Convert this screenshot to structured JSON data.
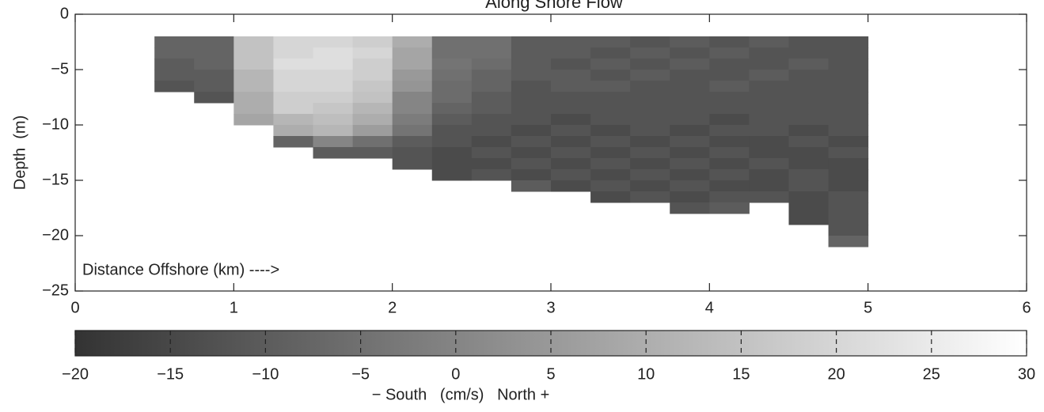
{
  "chart_data": {
    "type": "heatmap",
    "title": "Along Shore Flow",
    "ylabel": "Depth  (m)",
    "annotation": "Distance Offshore (km) ---->",
    "xlim": [
      0,
      6
    ],
    "xticks": [
      0,
      1,
      2,
      3,
      4,
      5,
      6
    ],
    "ylim": [
      -25,
      0
    ],
    "yticks": [
      0,
      {
        "value": -5,
        "label": "−5"
      },
      {
        "value": -10,
        "label": "−10"
      },
      {
        "value": -15,
        "label": "−15"
      },
      {
        "value": -20,
        "label": "−20"
      },
      {
        "value": -25,
        "label": "−25"
      }
    ],
    "x_edges": [
      0.5,
      0.75,
      1.0,
      1.25,
      1.5,
      1.75,
      2.0,
      2.25,
      2.5,
      2.75,
      3.0,
      3.25,
      3.5,
      3.75,
      4.0,
      4.25,
      4.5,
      4.75,
      5.0
    ],
    "y_edges": [
      -2,
      -3,
      -4,
      -5,
      -6,
      -7,
      -8,
      -9,
      -10,
      -11,
      -12,
      -13,
      -14,
      -15,
      -16,
      -17,
      -18,
      -19,
      -20,
      -21
    ],
    "z": [
      [
        -8,
        -8,
        15,
        20,
        20,
        18,
        10,
        -5,
        -5,
        -10,
        -10,
        -10,
        -12,
        -10,
        -12,
        -10,
        -12,
        -12
      ],
      [
        -8,
        -8,
        15,
        20,
        22,
        20,
        8,
        -5,
        -5,
        -10,
        -10,
        -12,
        -10,
        -12,
        -10,
        -12,
        -12,
        -12
      ],
      [
        -10,
        -8,
        15,
        22,
        22,
        18,
        8,
        -4,
        -6,
        -10,
        -12,
        -10,
        -12,
        -10,
        -12,
        -12,
        -10,
        -12
      ],
      [
        -10,
        -10,
        12,
        20,
        20,
        18,
        5,
        -5,
        -8,
        -10,
        -10,
        -12,
        -10,
        -12,
        -12,
        -10,
        -12,
        -12
      ],
      [
        -12,
        -10,
        12,
        20,
        20,
        16,
        4,
        -6,
        -8,
        -12,
        -10,
        -10,
        -12,
        -12,
        -10,
        -12,
        -12,
        -12
      ],
      [
        null,
        -12,
        10,
        18,
        18,
        15,
        0,
        -6,
        -10,
        -12,
        -12,
        -12,
        -12,
        -12,
        -12,
        -12,
        -12,
        -12
      ],
      [
        null,
        null,
        10,
        18,
        16,
        12,
        0,
        -8,
        -10,
        -12,
        -12,
        -12,
        -12,
        -12,
        -12,
        -12,
        -12,
        -12
      ],
      [
        null,
        null,
        8,
        12,
        14,
        10,
        -2,
        -10,
        -12,
        -12,
        -14,
        -12,
        -12,
        -12,
        -14,
        -12,
        -12,
        -12
      ],
      [
        null,
        null,
        null,
        10,
        12,
        6,
        -4,
        -12,
        -12,
        -14,
        -12,
        -14,
        -12,
        -14,
        -12,
        -12,
        -14,
        -12
      ],
      [
        null,
        null,
        null,
        -8,
        0,
        -5,
        -10,
        -12,
        -14,
        -12,
        -14,
        -12,
        -14,
        -12,
        -14,
        -14,
        -12,
        -14
      ],
      [
        null,
        null,
        null,
        null,
        -10,
        -10,
        -12,
        -14,
        -12,
        -14,
        -12,
        -14,
        -12,
        -14,
        -12,
        -14,
        -14,
        -12
      ],
      [
        null,
        null,
        null,
        null,
        null,
        null,
        -12,
        -14,
        -14,
        -12,
        -14,
        -12,
        -14,
        -12,
        -14,
        -12,
        -14,
        -14
      ],
      [
        null,
        null,
        null,
        null,
        null,
        null,
        null,
        -14,
        -12,
        -14,
        -12,
        -14,
        -12,
        -14,
        -12,
        -14,
        -12,
        -14
      ],
      [
        null,
        null,
        null,
        null,
        null,
        null,
        null,
        null,
        null,
        -10,
        -14,
        -12,
        -14,
        -12,
        -14,
        -14,
        -12,
        -14
      ],
      [
        null,
        null,
        null,
        null,
        null,
        null,
        null,
        null,
        null,
        null,
        null,
        -14,
        -12,
        -14,
        -12,
        -12,
        -14,
        -12
      ],
      [
        null,
        null,
        null,
        null,
        null,
        null,
        null,
        null,
        null,
        null,
        null,
        null,
        null,
        -12,
        -10,
        null,
        -14,
        -12
      ],
      [
        null,
        null,
        null,
        null,
        null,
        null,
        null,
        null,
        null,
        null,
        null,
        null,
        null,
        null,
        null,
        null,
        -14,
        -12
      ],
      [
        null,
        null,
        null,
        null,
        null,
        null,
        null,
        null,
        null,
        null,
        null,
        null,
        null,
        null,
        null,
        null,
        null,
        -12
      ],
      [
        null,
        null,
        null,
        null,
        null,
        null,
        null,
        null,
        null,
        null,
        null,
        null,
        null,
        null,
        null,
        null,
        null,
        -8
      ]
    ],
    "clim": [
      -20,
      30
    ],
    "cticks": [
      {
        "value": -20,
        "label": "−20"
      },
      {
        "value": -15,
        "label": "−15"
      },
      {
        "value": -10,
        "label": "−10"
      },
      {
        "value": -5,
        "label": "−5"
      },
      0,
      5,
      10,
      15,
      20,
      25,
      30
    ],
    "clabel": "− South   (cm/s)   North +",
    "colormap": [
      "#333333",
      "#ffffff"
    ]
  }
}
